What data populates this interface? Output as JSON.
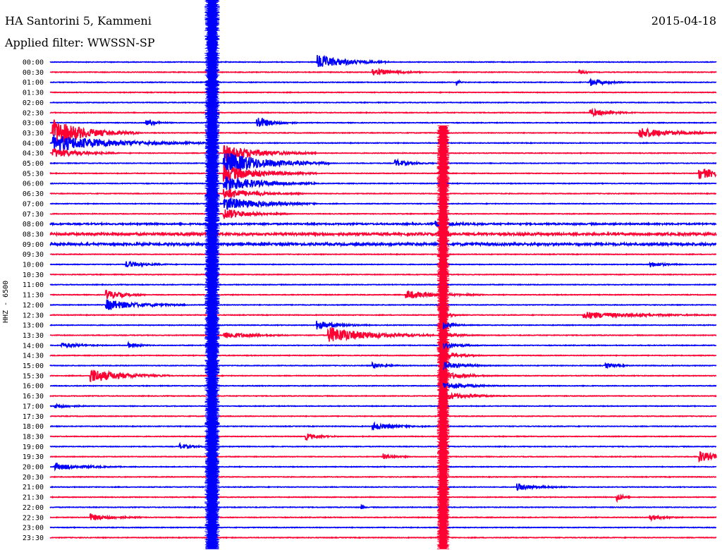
{
  "header": {
    "station": "HA Santorini 5, Kammeni",
    "filter": "Applied filter: WWSSN-SP",
    "date": "2015-04-18"
  },
  "chart_data": {
    "type": "helicorder",
    "ylabel": "HHZ - 6500",
    "colors": [
      "#0000ff",
      "#ff0033"
    ],
    "rows": [
      "00:00",
      "00:30",
      "01:00",
      "01:30",
      "02:00",
      "02:30",
      "03:00",
      "03:30",
      "04:00",
      "04:30",
      "05:00",
      "05:30",
      "06:00",
      "06:30",
      "07:00",
      "07:30",
      "08:00",
      "08:30",
      "09:00",
      "09:30",
      "10:00",
      "10:30",
      "11:00",
      "11:30",
      "12:00",
      "12:30",
      "13:00",
      "13:30",
      "14:00",
      "14:30",
      "15:00",
      "15:30",
      "16:00",
      "16:30",
      "17:00",
      "17:30",
      "18:00",
      "18:30",
      "19:00",
      "19:30",
      "20:00",
      "20:30",
      "21:00",
      "21:30",
      "22:00",
      "22:30",
      "23:00",
      "23:30"
    ],
    "minutes_per_row": 30,
    "events": [
      {
        "row": 0,
        "minute": 12.0,
        "amp": 2.6,
        "dur": 1.1
      },
      {
        "row": 1,
        "minute": 14.5,
        "amp": 1.4,
        "dur": 0.8
      },
      {
        "row": 1,
        "minute": 23.8,
        "amp": 1.2,
        "dur": 0.2
      },
      {
        "row": 2,
        "minute": 24.3,
        "amp": 1.3,
        "dur": 0.6
      },
      {
        "row": 2,
        "minute": 18.3,
        "amp": 1.2,
        "dur": 0.1
      },
      {
        "row": 5,
        "minute": 24.3,
        "amp": 1.3,
        "dur": 0.7
      },
      {
        "row": 6,
        "minute": 9.3,
        "amp": 2.2,
        "dur": 0.6
      },
      {
        "row": 6,
        "minute": 4.3,
        "amp": 1.0,
        "dur": 0.4
      },
      {
        "row": 7,
        "minute": 26.5,
        "amp": 2.0,
        "dur": 1.2
      },
      {
        "row": 7,
        "minute": 0.1,
        "amp": 5.0,
        "dur": 1.3
      },
      {
        "row": 8,
        "minute": 0.1,
        "amp": 3.0,
        "dur": 2.4
      },
      {
        "row": 9,
        "minute": 0.1,
        "amp": 1.8,
        "dur": 1.0
      },
      {
        "row": 9,
        "minute": 7.8,
        "amp": 3.0,
        "dur": 1.4
      },
      {
        "row": 10,
        "minute": 7.8,
        "amp": 4.5,
        "dur": 1.6
      },
      {
        "row": 10,
        "minute": 15.5,
        "amp": 1.3,
        "dur": 0.6
      },
      {
        "row": 11,
        "minute": 7.8,
        "amp": 3.0,
        "dur": 1.4
      },
      {
        "row": 11,
        "minute": 29.2,
        "amp": 2.0,
        "dur": 1.0
      },
      {
        "row": 12,
        "minute": 7.8,
        "amp": 3.0,
        "dur": 1.4
      },
      {
        "row": 13,
        "minute": 7.8,
        "amp": 2.0,
        "dur": 1.2
      },
      {
        "row": 14,
        "minute": 7.8,
        "amp": 2.5,
        "dur": 1.4
      },
      {
        "row": 15,
        "minute": 7.8,
        "amp": 2.0,
        "dur": 1.0
      },
      {
        "row": 16,
        "minute": 17.3,
        "amp": 1.0,
        "dur": 0.8
      },
      {
        "row": 20,
        "minute": 3.4,
        "amp": 1.1,
        "dur": 0.7
      },
      {
        "row": 20,
        "minute": 27.0,
        "amp": 1.0,
        "dur": 0.5
      },
      {
        "row": 23,
        "minute": 2.5,
        "amp": 1.8,
        "dur": 0.6
      },
      {
        "row": 23,
        "minute": 16.0,
        "amp": 1.5,
        "dur": 1.2
      },
      {
        "row": 24,
        "minute": 2.5,
        "amp": 2.0,
        "dur": 1.2
      },
      {
        "row": 25,
        "minute": 24.0,
        "amp": 1.2,
        "dur": 2.0
      },
      {
        "row": 27,
        "minute": 12.5,
        "amp": 3.0,
        "dur": 1.6
      },
      {
        "row": 27,
        "minute": 7.8,
        "amp": 1.2,
        "dur": 1.0
      },
      {
        "row": 26,
        "minute": 12.0,
        "amp": 1.5,
        "dur": 0.8
      },
      {
        "row": 28,
        "minute": 0.5,
        "amp": 0.9,
        "dur": 0.7
      },
      {
        "row": 28,
        "minute": 3.5,
        "amp": 0.9,
        "dur": 0.4
      },
      {
        "row": 30,
        "minute": 14.5,
        "amp": 1.0,
        "dur": 0.5
      },
      {
        "row": 30,
        "minute": 25.0,
        "amp": 0.9,
        "dur": 0.4
      },
      {
        "row": 31,
        "minute": 1.8,
        "amp": 2.6,
        "dur": 1.2
      },
      {
        "row": 34,
        "minute": 0.2,
        "amp": 0.9,
        "dur": 0.5
      },
      {
        "row": 36,
        "minute": 14.5,
        "amp": 1.4,
        "dur": 0.8
      },
      {
        "row": 37,
        "minute": 11.5,
        "amp": 1.1,
        "dur": 0.5
      },
      {
        "row": 38,
        "minute": 5.8,
        "amp": 1.0,
        "dur": 0.5
      },
      {
        "row": 39,
        "minute": 15.0,
        "amp": 1.0,
        "dur": 0.4
      },
      {
        "row": 39,
        "minute": 29.2,
        "amp": 2.0,
        "dur": 0.8
      },
      {
        "row": 40,
        "minute": 0.2,
        "amp": 1.2,
        "dur": 1.0
      },
      {
        "row": 42,
        "minute": 21.0,
        "amp": 1.2,
        "dur": 0.8
      },
      {
        "row": 43,
        "minute": 25.5,
        "amp": 2.0,
        "dur": 0.2
      },
      {
        "row": 44,
        "minute": 14.0,
        "amp": 0.9,
        "dur": 0.1
      },
      {
        "row": 45,
        "minute": 1.8,
        "amp": 1.2,
        "dur": 0.8
      },
      {
        "row": 45,
        "minute": 27.0,
        "amp": 1.0,
        "dur": 0.5
      }
    ],
    "big_events": [
      {
        "start_row": 0,
        "end_row": 47,
        "minute": 7.3,
        "amp": 9.0,
        "color": "#0000ff"
      },
      {
        "start_row": 7,
        "end_row": 47,
        "minute": 17.7,
        "amp": 7.5,
        "color": "#ff0033"
      }
    ],
    "noisy_rows": [
      {
        "row": 17,
        "amp": 1.6
      },
      {
        "row": 18,
        "amp": 1.6
      },
      {
        "row": 16,
        "amp": 1.0
      }
    ]
  }
}
